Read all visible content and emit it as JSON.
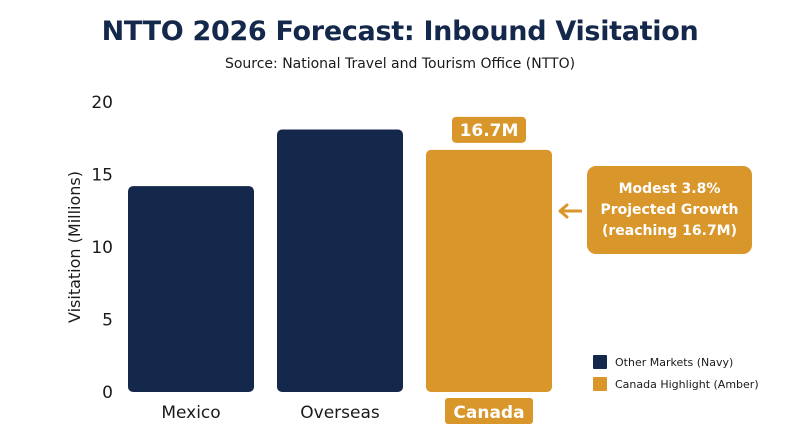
{
  "colors": {
    "navy": "#14284b",
    "amber": "#d9962b",
    "text": "#1a1a1a"
  },
  "chart_data": {
    "type": "bar",
    "title": "NTTO 2026 Forecast: Inbound Visitation",
    "subtitle": "Source: National Travel and Tourism Office (NTTO)",
    "xlabel": "",
    "ylabel": "Visitation (Millions)",
    "ylim": [
      0,
      20
    ],
    "yticks": [
      "0",
      "5",
      "10",
      "15",
      "20"
    ],
    "categories": [
      "Mexico",
      "Overseas",
      "Canada"
    ],
    "values": [
      14.2,
      18.1,
      16.7
    ],
    "highlight_index": 2,
    "data_labels": [
      "",
      "",
      "16.7M"
    ],
    "annotation": [
      "Modest 3.8%",
      "Projected Growth",
      "(reaching 16.7M)"
    ],
    "legend": [
      {
        "label": "Other Markets (Navy)",
        "color": "#14284b"
      },
      {
        "label": "Canada Highlight (Amber)",
        "color": "#d9962b"
      }
    ],
    "legend_position": "bottom-right",
    "grid": false
  }
}
